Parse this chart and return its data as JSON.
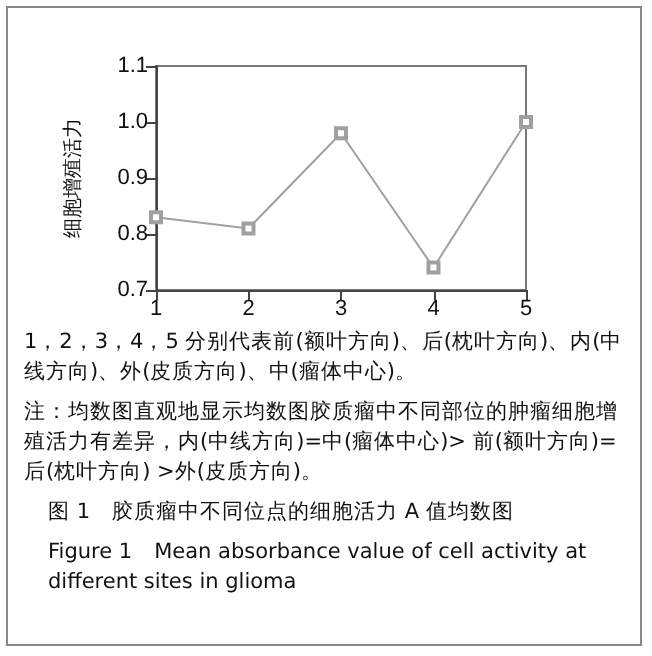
{
  "chart_data": {
    "type": "line",
    "ylabel": "细胞增殖活力",
    "x": [
      1,
      2,
      3,
      4,
      5
    ],
    "values": [
      0.83,
      0.81,
      0.98,
      0.74,
      1.0
    ],
    "color": "#a0a0a0",
    "marker": "square",
    "xlim": [
      1,
      5
    ],
    "xticks": [
      1,
      2,
      3,
      4,
      5
    ],
    "ylim": [
      0.7,
      1.1
    ],
    "yticks": [
      0.7,
      0.8,
      0.9,
      {
        "value": 1.0,
        "label": "1.0"
      },
      1.1
    ],
    "annotations": [
      "1，2，3，4，5 分别代表前(额叶方向)、后(枕叶方向)、内(中线方向)、外(皮质方向)、中(瘤体中心)。",
      "注：均数图直观地显示均数图胶质瘤中不同部位的肿瘤细胞增殖活力有差异，内(中线方向)=中(瘤体中心)> 前(额叶方向)=后(枕叶方向) >外(皮质方向)。",
      "图 1　胶质瘤中不同位点的细胞活力 A 值均数图",
      "Figure 1　Mean absorbance value of cell activity at different sites in glioma"
    ]
  }
}
